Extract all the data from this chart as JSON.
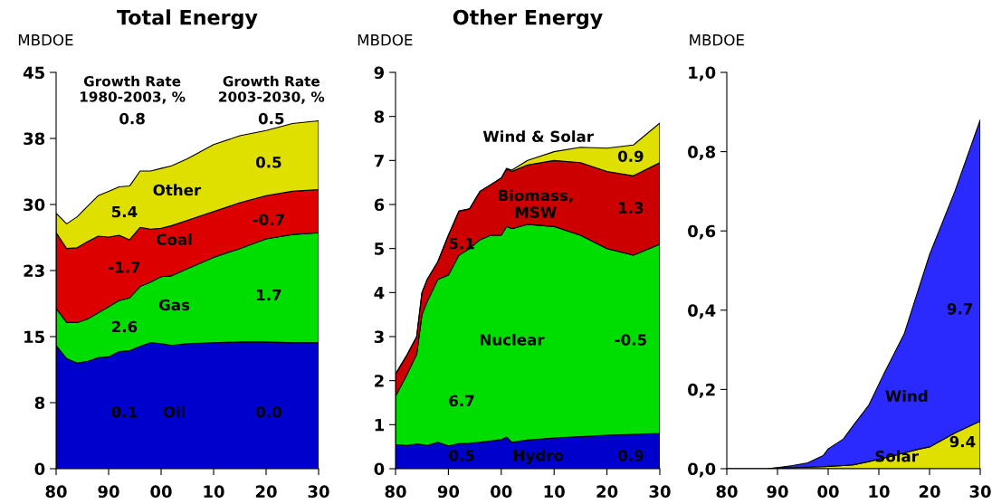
{
  "chart_data": [
    {
      "type": "area",
      "stacked": true,
      "title": "Total Energy",
      "ylabel": "MBDOE",
      "x": [
        1980,
        1982,
        1984,
        1986,
        1988,
        1990,
        1992,
        1994,
        1996,
        1998,
        2000,
        2002,
        2005,
        2010,
        2015,
        2020,
        2025,
        2030
      ],
      "xlim": [
        1980,
        2030
      ],
      "xticks": [
        {
          "value": 1980,
          "label": "80"
        },
        {
          "value": 1990,
          "label": "90"
        },
        {
          "value": 2000,
          "label": "00"
        },
        {
          "value": 2010,
          "label": "10"
        },
        {
          "value": 2020,
          "label": "20"
        },
        {
          "value": 2030,
          "label": "30"
        }
      ],
      "ylim": [
        0,
        45
      ],
      "yticks": [
        0,
        {
          "value": 7.5,
          "label": "8"
        },
        15,
        {
          "value": 22.5,
          "label": "23"
        },
        30,
        {
          "value": 37.5,
          "label": "38"
        },
        45
      ],
      "series": [
        {
          "color": "#0000cc",
          "values": [
            14.0,
            12.5,
            12.0,
            12.2,
            12.6,
            12.7,
            13.3,
            13.4,
            13.9,
            14.3,
            14.2,
            14.0,
            14.2,
            14.3,
            14.4,
            14.4,
            14.3,
            14.3
          ]
        },
        {
          "color": "#00dd00",
          "values": [
            4.2,
            4.1,
            4.6,
            4.8,
            5.1,
            5.7,
            5.8,
            6.0,
            6.8,
            6.9,
            7.6,
            7.9,
            8.5,
            9.7,
            10.6,
            11.7,
            12.3,
            12.5
          ]
        },
        {
          "color": "#dd0000",
          "values": [
            8.6,
            8.4,
            8.5,
            8.8,
            8.7,
            7.9,
            7.4,
            6.6,
            6.7,
            6.0,
            5.5,
            5.7,
            5.5,
            5.2,
            5.2,
            4.9,
            4.9,
            4.9
          ]
        },
        {
          "color": "#e0e000",
          "values": [
            2.2,
            2.8,
            3.5,
            4.0,
            4.6,
            5.2,
            5.5,
            6.1,
            6.4,
            6.6,
            6.8,
            6.8,
            7.0,
            7.6,
            7.6,
            7.4,
            7.7,
            7.8
          ]
        }
      ],
      "annotations": [
        "Growth Rate\n1980-2003, %",
        "Growth Rate\n2003-2030, %",
        "0.8",
        "0.5",
        "5.4",
        "Other",
        "0.5",
        "Coal",
        "-1.7",
        "-0.7",
        "Gas",
        "2.6",
        "1.7",
        "0.1",
        "Oil",
        "0.0"
      ]
    },
    {
      "type": "area",
      "stacked": true,
      "title": "Other Energy",
      "ylabel": "MBDOE",
      "x": [
        1980,
        1982,
        1984,
        1985,
        1986,
        1988,
        1990,
        1992,
        1994,
        1996,
        1998,
        2000,
        2001,
        2002,
        2005,
        2010,
        2015,
        2020,
        2025,
        2030
      ],
      "xlim": [
        1980,
        2030
      ],
      "xticks": [
        {
          "value": 1980,
          "label": "80"
        },
        {
          "value": 1990,
          "label": "90"
        },
        {
          "value": 2000,
          "label": "00"
        },
        {
          "value": 2010,
          "label": "10"
        },
        {
          "value": 2020,
          "label": "20"
        },
        {
          "value": 2030,
          "label": "30"
        }
      ],
      "ylim": [
        0,
        9
      ],
      "yticks": [
        0,
        1,
        2,
        3,
        4,
        5,
        6,
        7,
        8,
        9
      ],
      "series": [
        {
          "color": "#0000cc",
          "values": [
            0.55,
            0.53,
            0.56,
            0.55,
            0.53,
            0.6,
            0.52,
            0.57,
            0.58,
            0.6,
            0.63,
            0.66,
            0.72,
            0.6,
            0.65,
            0.7,
            0.73,
            0.76,
            0.78,
            0.8
          ]
        },
        {
          "color": "#00dd00",
          "values": [
            1.1,
            1.57,
            2.04,
            2.95,
            3.27,
            3.7,
            3.88,
            4.28,
            4.42,
            4.6,
            4.67,
            4.64,
            4.78,
            4.85,
            4.9,
            4.8,
            4.57,
            4.24,
            4.07,
            4.3
          ]
        },
        {
          "color": "#cc0000",
          "values": [
            0.5,
            0.45,
            0.4,
            0.5,
            0.5,
            0.4,
            0.9,
            1.0,
            0.9,
            1.1,
            1.15,
            1.3,
            1.3,
            1.3,
            1.35,
            1.5,
            1.65,
            1.75,
            1.8,
            1.85
          ]
        },
        {
          "color": "#e0e000",
          "values": [
            0,
            0,
            0,
            0,
            0,
            0,
            0,
            0,
            0,
            0,
            0,
            0,
            0.02,
            0.03,
            0.1,
            0.2,
            0.35,
            0.53,
            0.7,
            0.9
          ]
        }
      ],
      "annotations": [
        "Wind & Solar",
        "0.9",
        "Biomass,\nMSW",
        "1.3",
        "5.1",
        "Nuclear",
        "-0.5",
        "6.7",
        "0.5",
        "Hydro",
        "0.9"
      ]
    },
    {
      "type": "area",
      "stacked": true,
      "ylabel": "MBDOE",
      "x": [
        1980,
        1988,
        1990,
        1993,
        1996,
        1999,
        2000,
        2003,
        2005,
        2008,
        2011,
        2013,
        2015,
        2018,
        2020,
        2025,
        2030
      ],
      "xlim": [
        1980,
        2030
      ],
      "xticks": [
        {
          "value": 1980,
          "label": "80"
        },
        {
          "value": 1990,
          "label": "90"
        },
        {
          "value": 2000,
          "label": "00"
        },
        {
          "value": 2010,
          "label": "10"
        },
        {
          "value": 2020,
          "label": "20"
        },
        {
          "value": 2030,
          "label": "30"
        }
      ],
      "ylim": [
        0,
        1.0
      ],
      "yticks": [
        {
          "value": 0,
          "label": "0,0"
        },
        {
          "value": 0.2,
          "label": "0,2"
        },
        {
          "value": 0.4,
          "label": "0,4"
        },
        {
          "value": 0.6,
          "label": "0,6"
        },
        {
          "value": 0.8,
          "label": "0,8"
        },
        {
          "value": 1.0,
          "label": "1,0"
        }
      ],
      "series": [
        {
          "color": "#e0e000",
          "values": [
            0,
            0,
            0.002,
            0.003,
            0.004,
            0.005,
            0.006,
            0.008,
            0.01,
            0.018,
            0.027,
            0.033,
            0.04,
            0.05,
            0.055,
            0.09,
            0.12
          ]
        },
        {
          "color": "#2a2aff",
          "values": [
            0,
            0,
            0.001,
            0.005,
            0.011,
            0.028,
            0.044,
            0.067,
            0.1,
            0.142,
            0.213,
            0.257,
            0.3,
            0.41,
            0.485,
            0.61,
            0.76
          ]
        }
      ],
      "annotations": [
        "9.7",
        "Wind",
        "Solar",
        "9.4"
      ]
    }
  ]
}
